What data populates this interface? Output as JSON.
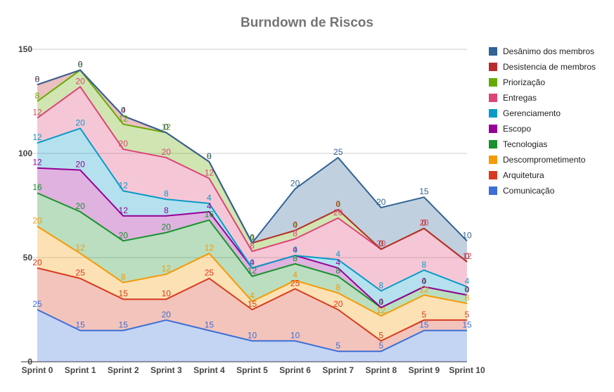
{
  "chart_data": {
    "type": "area",
    "stacked": true,
    "title": "Burndown de Riscos",
    "xlabel": "",
    "ylabel": "",
    "ylim": [
      0,
      150
    ],
    "yticks": [
      0,
      50,
      100,
      150
    ],
    "grid": true,
    "legend_position": "right",
    "categories": [
      "Sprint 0",
      "Sprint 1",
      "Sprint 2",
      "Sprint 3",
      "Sprint 4",
      "Sprint 5",
      "Sprint 6",
      "Sprint 7",
      "Sprint 8",
      "Sprint 9",
      "Sprint 10"
    ],
    "series": [
      {
        "name": "Comunicação",
        "color": "#3c6fd6",
        "values": [
          25,
          15,
          15,
          20,
          15,
          10,
          10,
          5,
          5,
          15,
          15
        ]
      },
      {
        "name": "Arquitetura",
        "color": "#d83a1f",
        "values": [
          20,
          25,
          15,
          10,
          25,
          15,
          25,
          20,
          5,
          5,
          5
        ]
      },
      {
        "name": "Descomprometimento",
        "color": "#f59a07",
        "values": [
          20,
          12,
          8,
          12,
          12,
          4,
          4,
          8,
          12,
          12,
          8
        ]
      },
      {
        "name": "Tecnologias",
        "color": "#19922c",
        "values": [
          16,
          20,
          20,
          20,
          16,
          12,
          8,
          8,
          4,
          4,
          4
        ]
      },
      {
        "name": "Escopo",
        "color": "#960096",
        "values": [
          12,
          20,
          12,
          8,
          4,
          4,
          4,
          4,
          0,
          0,
          0
        ]
      },
      {
        "name": "Gerenciamento",
        "color": "#099ac8",
        "values": [
          12,
          20,
          12,
          8,
          4,
          0,
          0,
          4,
          8,
          8,
          4
        ]
      },
      {
        "name": "Entregas",
        "color": "#dd4477",
        "values": [
          12,
          20,
          20,
          20,
          12,
          8,
          8,
          20,
          20,
          20,
          12
        ]
      },
      {
        "name": "Priorização",
        "color": "#66aa00",
        "values": [
          8,
          8,
          12,
          12,
          8,
          4,
          4,
          4,
          0,
          0,
          0
        ]
      },
      {
        "name": "Desistencia de membros",
        "color": "#b82e2e",
        "values": [
          8,
          0,
          4,
          0,
          0,
          0,
          0,
          0,
          0,
          0,
          0
        ]
      },
      {
        "name": "Desânimo dos membros",
        "color": "#316395",
        "values": [
          0,
          0,
          0,
          0,
          0,
          0,
          20,
          25,
          20,
          15,
          10
        ]
      }
    ],
    "legend_order": [
      "Desânimo dos membros",
      "Desistencia de membros",
      "Priorização",
      "Entregas",
      "Gerenciamento",
      "Escopo",
      "Tecnologias",
      "Descomprometimento",
      "Arquitetura",
      "Comunicação"
    ]
  }
}
